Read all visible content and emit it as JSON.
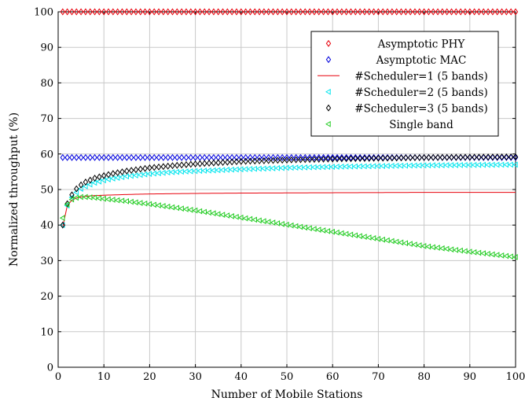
{
  "chart_data": {
    "type": "line",
    "title": "",
    "xlabel": "Number of Mobile Stations",
    "ylabel": "Normalized throughput (%)",
    "xlim": [
      0,
      100
    ],
    "ylim": [
      0,
      100
    ],
    "x_ticks": [
      0,
      10,
      20,
      30,
      40,
      50,
      60,
      70,
      80,
      90,
      100
    ],
    "y_ticks": [
      0,
      10,
      20,
      30,
      40,
      50,
      60,
      70,
      80,
      90,
      100
    ],
    "grid": true,
    "legend_position": "top-right",
    "series": [
      {
        "name": "Asymptotic PHY",
        "marker": "diamond",
        "color": "#e8000b",
        "line": false,
        "x": [
          1,
          100
        ],
        "y": [
          100,
          100
        ]
      },
      {
        "name": "Asymptotic MAC",
        "marker": "diamond",
        "color": "#0000dd",
        "line": false,
        "x": [
          1,
          100
        ],
        "y": [
          59,
          59
        ]
      },
      {
        "name": "#Scheduler=1 (5 bands)",
        "marker": "none",
        "color": "#e8000b",
        "line": true,
        "x": [
          1,
          2,
          3,
          4,
          5,
          6,
          8,
          10,
          15,
          20,
          30,
          40,
          50,
          60,
          70,
          80,
          90,
          100
        ],
        "y": [
          39.5,
          45.5,
          47,
          47.6,
          47.9,
          48.1,
          48.3,
          48.4,
          48.6,
          48.75,
          48.9,
          49.0,
          49.05,
          49.1,
          49.15,
          49.2,
          49.2,
          49.2
        ]
      },
      {
        "name": "#Scheduler=2 (5 bands)",
        "marker": "triangle-left",
        "color": "#00e5ee",
        "line": false,
        "x": [
          1,
          2,
          3,
          4,
          5,
          6,
          8,
          10,
          12,
          15,
          20,
          25,
          30,
          40,
          50,
          60,
          70,
          80,
          90,
          100
        ],
        "y": [
          40,
          45.5,
          47.8,
          49.2,
          50.2,
          50.9,
          51.9,
          52.6,
          53.1,
          53.7,
          54.4,
          54.9,
          55.2,
          55.7,
          56.1,
          56.4,
          56.6,
          56.8,
          56.9,
          57
        ]
      },
      {
        "name": "#Scheduler=3 (5 bands)",
        "marker": "diamond",
        "color": "#000000",
        "line": false,
        "x": [
          1,
          2,
          3,
          4,
          5,
          6,
          8,
          10,
          12,
          15,
          20,
          25,
          30,
          40,
          50,
          60,
          70,
          80,
          90,
          100
        ],
        "y": [
          40,
          46,
          48.5,
          50.2,
          51.3,
          52.1,
          53.2,
          53.9,
          54.5,
          55.2,
          56.1,
          56.7,
          57.2,
          57.9,
          58.3,
          58.6,
          58.8,
          59,
          59.1,
          59.2
        ]
      },
      {
        "name": "Single band",
        "marker": "triangle-left",
        "color": "#22cc22",
        "line": false,
        "x": [
          1,
          2,
          3,
          4,
          5,
          6,
          8,
          10,
          15,
          20,
          30,
          40,
          50,
          60,
          70,
          80,
          90,
          100
        ],
        "y": [
          42,
          45.8,
          47.2,
          47.7,
          47.9,
          47.9,
          47.7,
          47.4,
          46.7,
          45.9,
          44.1,
          42.1,
          40.1,
          38.1,
          36.1,
          34.1,
          32.5,
          31
        ]
      }
    ]
  }
}
